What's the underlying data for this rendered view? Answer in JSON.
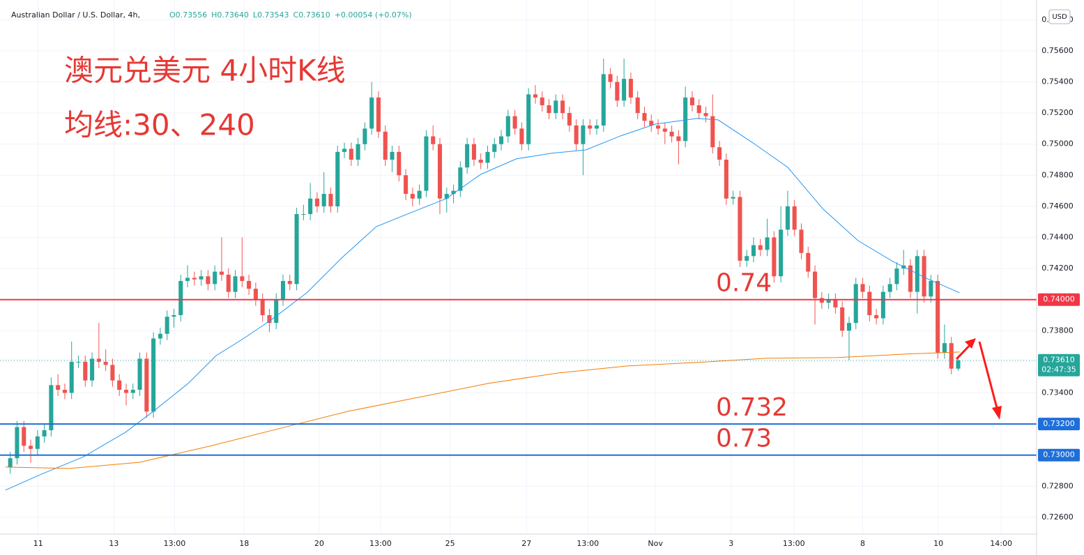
{
  "chart_data": {
    "type": "candlestick",
    "title": "Australian Dollar / U.S. Dollar, 4h,",
    "ohlc_legend": [
      "O0.73556",
      "H0.73640",
      "L0.73543",
      "C0.73610",
      "+0.00054 (+0.07%)"
    ],
    "overlay_text": [
      "澳元兑美元 4小时K线",
      "均线:30、240"
    ],
    "currency": "USD",
    "up_color": "#26a69a",
    "down_color": "#ef5350",
    "grid": true,
    "xlim": [
      -1.5,
      150.5
    ],
    "xticks": [
      {
        "value": 4.1,
        "label": "11"
      },
      {
        "value": 15.2,
        "label": "13"
      },
      {
        "value": 24.1,
        "label": "13:00"
      },
      {
        "value": 34.3,
        "label": "18"
      },
      {
        "value": 45.3,
        "label": "20"
      },
      {
        "value": 54.3,
        "label": "13:00"
      },
      {
        "value": 64.5,
        "label": "25"
      },
      {
        "value": 75.7,
        "label": "27"
      },
      {
        "value": 84.7,
        "label": "13:00"
      },
      {
        "value": 94.6,
        "label": "Nov"
      },
      {
        "value": 105.7,
        "label": "3"
      },
      {
        "value": 114.9,
        "label": "13:00"
      },
      {
        "value": 125,
        "label": "8"
      },
      {
        "value": 136.1,
        "label": "10"
      },
      {
        "value": 145.3,
        "label": "14:00"
      }
    ],
    "ylim": [
      0.72492,
      0.75927
    ],
    "yticks": [
      {
        "value": 0.726,
        "label": "0.72600"
      },
      {
        "value": 0.728,
        "label": "0.72800"
      },
      {
        "value": 0.73,
        "label": "0.73000"
      },
      {
        "value": 0.732,
        "label": "0.73200"
      },
      {
        "value": 0.734,
        "label": "0.73400"
      },
      {
        "value": 0.736,
        "label": "0.73600"
      },
      {
        "value": 0.738,
        "label": "0.73800"
      },
      {
        "value": 0.74,
        "label": "0.74000"
      },
      {
        "value": 0.742,
        "label": "0.74200"
      },
      {
        "value": 0.744,
        "label": "0.74400"
      },
      {
        "value": 0.746,
        "label": "0.74600"
      },
      {
        "value": 0.748,
        "label": "0.74800"
      },
      {
        "value": 0.75,
        "label": "0.75000"
      },
      {
        "value": 0.752,
        "label": "0.75200"
      },
      {
        "value": 0.754,
        "label": "0.75400"
      },
      {
        "value": 0.756,
        "label": "0.75600"
      },
      {
        "value": 0.758,
        "label": "0.75800"
      }
    ],
    "open": [
      0.7292,
      0.7298,
      0.7318,
      0.7306,
      0.7304,
      0.7312,
      0.7316,
      0.7345,
      0.7342,
      0.734,
      0.736,
      0.736,
      0.7348,
      0.7362,
      0.736,
      0.7358,
      0.7348,
      0.7342,
      0.734,
      0.7342,
      0.7362,
      0.7328,
      0.7375,
      0.7378,
      0.7389,
      0.739,
      0.7412,
      0.7414,
      0.7413,
      0.7415,
      0.741,
      0.7418,
      0.7416,
      0.7405,
      0.7415,
      0.7412,
      0.7407,
      0.74,
      0.739,
      0.7385,
      0.74,
      0.7412,
      0.741,
      0.7455,
      0.7455,
      0.7465,
      0.746,
      0.7468,
      0.746,
      0.7495,
      0.7497,
      0.749,
      0.75,
      0.751,
      0.753,
      0.7508,
      0.749,
      0.7495,
      0.748,
      0.7468,
      0.7465,
      0.747,
      0.7505,
      0.75,
      0.7465,
      0.7468,
      0.747,
      0.7485,
      0.75,
      0.749,
      0.7488,
      0.7495,
      0.75,
      0.7505,
      0.7518,
      0.751,
      0.75,
      0.7532,
      0.753,
      0.7525,
      0.752,
      0.7528,
      0.752,
      0.7512,
      0.75,
      0.7512,
      0.751,
      0.7512,
      0.7545,
      0.754,
      0.7528,
      0.7542,
      0.753,
      0.752,
      0.7515,
      0.7512,
      0.751,
      0.7508,
      0.7505,
      0.7502,
      0.753,
      0.7525,
      0.752,
      0.7518,
      0.7498,
      0.749,
      0.7465,
      0.7466,
      0.7425,
      0.7428,
      0.7435,
      0.7432,
      0.744,
      0.7415,
      0.7445,
      0.746,
      0.7445,
      0.743,
      0.7418,
      0.7401,
      0.7398,
      0.74,
      0.7395,
      0.738,
      0.7385,
      0.741,
      0.7405,
      0.739,
      0.7388,
      0.7405,
      0.741,
      0.742,
      0.7422,
      0.7405,
      0.7428,
      0.7402,
      0.7412,
      0.7366,
      0.7372,
      0.73556
    ],
    "high": [
      0.7302,
      0.7322,
      0.7322,
      0.731,
      0.7316,
      0.732,
      0.735,
      0.7352,
      0.7346,
      0.7373,
      0.7364,
      0.7364,
      0.7366,
      0.7385,
      0.7368,
      0.7362,
      0.7352,
      0.7346,
      0.7346,
      0.7366,
      0.7366,
      0.7379,
      0.7382,
      0.7393,
      0.7394,
      0.7416,
      0.7422,
      0.7418,
      0.7419,
      0.7419,
      0.7422,
      0.744,
      0.742,
      0.7419,
      0.744,
      0.7416,
      0.7411,
      0.7404,
      0.7394,
      0.7404,
      0.7416,
      0.7416,
      0.7459,
      0.7461,
      0.7475,
      0.7469,
      0.7482,
      0.7472,
      0.7499,
      0.7501,
      0.7501,
      0.7504,
      0.7514,
      0.754,
      0.7534,
      0.7512,
      0.7499,
      0.7499,
      0.7484,
      0.7472,
      0.7474,
      0.7509,
      0.7512,
      0.7504,
      0.7472,
      0.7474,
      0.7489,
      0.7504,
      0.7504,
      0.7494,
      0.7499,
      0.7504,
      0.7509,
      0.7522,
      0.7522,
      0.7514,
      0.7536,
      0.7538,
      0.7534,
      0.7529,
      0.7532,
      0.7532,
      0.7524,
      0.7516,
      0.7516,
      0.7516,
      0.7516,
      0.7555,
      0.7549,
      0.7544,
      0.7555,
      0.7546,
      0.7534,
      0.7524,
      0.7519,
      0.7516,
      0.7514,
      0.7512,
      0.7509,
      0.7537,
      0.7534,
      0.7529,
      0.7524,
      0.7532,
      0.7502,
      0.7494,
      0.747,
      0.747,
      0.7432,
      0.744,
      0.7439,
      0.7452,
      0.7444,
      0.746,
      0.747,
      0.7464,
      0.7449,
      0.7434,
      0.7422,
      0.7405,
      0.7404,
      0.7404,
      0.7399,
      0.7389,
      0.7414,
      0.7414,
      0.7409,
      0.7394,
      0.7409,
      0.7414,
      0.7424,
      0.7432,
      0.7426,
      0.7432,
      0.7432,
      0.7416,
      0.7416,
      0.7384,
      0.7376,
      0.7364
    ],
    "low": [
      0.7288,
      0.7294,
      0.7302,
      0.7295,
      0.73,
      0.7308,
      0.7312,
      0.7338,
      0.7336,
      0.7336,
      0.7356,
      0.7344,
      0.7344,
      0.7356,
      0.7354,
      0.7344,
      0.7338,
      0.7332,
      0.7336,
      0.7338,
      0.7324,
      0.7324,
      0.7371,
      0.7374,
      0.7382,
      0.7386,
      0.7408,
      0.7409,
      0.7409,
      0.7406,
      0.7406,
      0.7412,
      0.7401,
      0.7401,
      0.7408,
      0.7403,
      0.7396,
      0.7386,
      0.7379,
      0.7381,
      0.7396,
      0.7406,
      0.7406,
      0.7451,
      0.7451,
      0.7456,
      0.7456,
      0.7456,
      0.7456,
      0.7491,
      0.7486,
      0.7486,
      0.7496,
      0.7506,
      0.7504,
      0.7486,
      0.7482,
      0.7476,
      0.7464,
      0.746,
      0.7461,
      0.7466,
      0.7496,
      0.7455,
      0.7456,
      0.7462,
      0.7466,
      0.7481,
      0.7486,
      0.7484,
      0.7484,
      0.7491,
      0.7496,
      0.7501,
      0.7506,
      0.7496,
      0.7496,
      0.7526,
      0.7521,
      0.7516,
      0.7516,
      0.7516,
      0.7508,
      0.7496,
      0.748,
      0.7506,
      0.7506,
      0.7508,
      0.7536,
      0.7524,
      0.7524,
      0.7526,
      0.7516,
      0.7511,
      0.7508,
      0.7506,
      0.75,
      0.7501,
      0.7487,
      0.7498,
      0.7521,
      0.7516,
      0.7514,
      0.7494,
      0.7486,
      0.7461,
      0.7461,
      0.7421,
      0.7421,
      0.7424,
      0.7428,
      0.7428,
      0.7411,
      0.7411,
      0.7441,
      0.7441,
      0.7426,
      0.7414,
      0.7384,
      0.7394,
      0.7394,
      0.7391,
      0.7376,
      0.7361,
      0.7381,
      0.7401,
      0.7386,
      0.7384,
      0.7384,
      0.7401,
      0.7406,
      0.7416,
      0.7401,
      0.7391,
      0.7398,
      0.7398,
      0.7362,
      0.7362,
      0.7352,
      0.73543
    ],
    "close": [
      0.7298,
      0.7318,
      0.7306,
      0.7304,
      0.7312,
      0.7316,
      0.7345,
      0.7342,
      0.734,
      0.736,
      0.736,
      0.7348,
      0.7362,
      0.736,
      0.7358,
      0.7348,
      0.7342,
      0.734,
      0.7342,
      0.7362,
      0.7328,
      0.7375,
      0.7378,
      0.7389,
      0.739,
      0.7412,
      0.7414,
      0.7413,
      0.7415,
      0.741,
      0.7418,
      0.7416,
      0.7405,
      0.7415,
      0.7412,
      0.7407,
      0.74,
      0.739,
      0.7385,
      0.74,
      0.7412,
      0.741,
      0.7455,
      0.7455,
      0.7465,
      0.746,
      0.7468,
      0.746,
      0.7495,
      0.7497,
      0.749,
      0.75,
      0.751,
      0.753,
      0.7508,
      0.749,
      0.7495,
      0.748,
      0.7468,
      0.7465,
      0.747,
      0.7505,
      0.75,
      0.7465,
      0.7468,
      0.747,
      0.7485,
      0.75,
      0.749,
      0.7488,
      0.7495,
      0.75,
      0.7505,
      0.7518,
      0.751,
      0.75,
      0.7532,
      0.753,
      0.7525,
      0.752,
      0.7528,
      0.752,
      0.7512,
      0.75,
      0.7512,
      0.751,
      0.7512,
      0.7545,
      0.754,
      0.7528,
      0.7542,
      0.753,
      0.752,
      0.7515,
      0.7512,
      0.751,
      0.7508,
      0.7505,
      0.7502,
      0.753,
      0.7525,
      0.752,
      0.7518,
      0.7498,
      0.749,
      0.7465,
      0.7466,
      0.7425,
      0.7428,
      0.7435,
      0.7432,
      0.744,
      0.7415,
      0.7445,
      0.746,
      0.7445,
      0.743,
      0.7418,
      0.7401,
      0.7398,
      0.74,
      0.7395,
      0.738,
      0.7385,
      0.741,
      0.7405,
      0.739,
      0.7388,
      0.7405,
      0.741,
      0.742,
      0.7422,
      0.7405,
      0.7428,
      0.7402,
      0.7412,
      0.7366,
      0.7372,
      0.73556,
      0.7361
    ],
    "moving_averages": [
      {
        "color": "#2196f3",
        "x": [
          -0.7,
          4.6,
          10.8,
          16.9,
          21,
          26.1,
          30.2,
          34.3,
          38.4,
          43.5,
          48.6,
          53.7,
          58.8,
          63.9,
          69,
          74.2,
          79.3,
          84.4,
          89.5,
          94.6,
          100.7,
          103.8,
          108.9,
          114,
          119.2,
          124.3,
          129.4,
          134.5,
          139.2
        ],
        "values": [
          0.72775,
          0.72878,
          0.7299,
          0.73147,
          0.73282,
          0.73461,
          0.7364,
          0.73752,
          0.73874,
          0.74044,
          0.74268,
          0.7447,
          0.7456,
          0.74649,
          0.74806,
          0.74905,
          0.74941,
          0.74963,
          0.75053,
          0.75129,
          0.75165,
          0.75156,
          0.75008,
          0.74851,
          0.74582,
          0.7438,
          0.74246,
          0.74134,
          0.74044
        ]
      },
      {
        "color": "#f57c00",
        "x": [
          -0.7,
          8.7,
          19,
          29.2,
          39.4,
          49.6,
          59.9,
          70.1,
          80.3,
          90.5,
          100.8,
          111,
          121.2,
          131.4,
          139.2
        ],
        "values": [
          0.72923,
          0.72914,
          0.72954,
          0.73057,
          0.7317,
          0.73282,
          0.73372,
          0.73461,
          0.73528,
          0.73573,
          0.73596,
          0.73623,
          0.73627,
          0.7365,
          0.73663
        ]
      }
    ],
    "levels": [
      {
        "value": 0.74,
        "label": "0.74000",
        "color": "#f23645"
      },
      {
        "value": 0.732,
        "label": "0.73200",
        "color": "#1e6fd9"
      },
      {
        "value": 0.73,
        "label": "0.73000",
        "color": "#1e6fd9"
      }
    ],
    "last_price": {
      "value": 0.7361,
      "label": "0.73610",
      "countdown": "02:47:35",
      "color": "#26a69a"
    }
  }
}
